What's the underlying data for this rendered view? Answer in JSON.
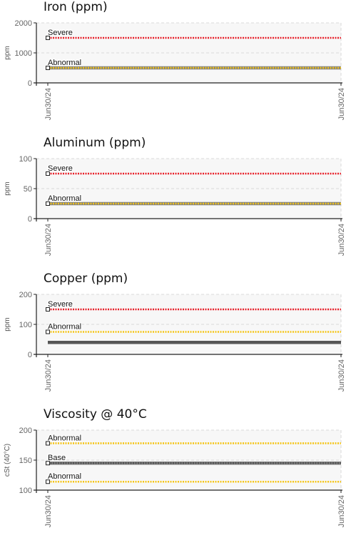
{
  "chart_data": [
    {
      "type": "line",
      "title": "Iron (ppm)",
      "ylabel": "ppm",
      "ylim": [
        0,
        2000
      ],
      "yticks": [
        "0",
        "1000",
        "2000"
      ],
      "x": [
        "Jun30/24",
        "Jun30/24"
      ],
      "grid": true,
      "thresholds": [
        {
          "label": "Severe",
          "value": 1500,
          "color": "#e8202a"
        },
        {
          "label": "Abnormal",
          "value": 500,
          "color": "#f5c518"
        }
      ],
      "series": [
        {
          "values": [
            500,
            500
          ],
          "color": "#808080"
        }
      ]
    },
    {
      "type": "line",
      "title": "Aluminum (ppm)",
      "ylabel": "ppm",
      "ylim": [
        0,
        100
      ],
      "yticks": [
        "0",
        "50",
        "100"
      ],
      "x": [
        "Jun30/24",
        "Jun30/24"
      ],
      "grid": true,
      "thresholds": [
        {
          "label": "Severe",
          "value": 75,
          "color": "#e8202a"
        },
        {
          "label": "Abnormal",
          "value": 25,
          "color": "#f5c518"
        }
      ],
      "series": [
        {
          "values": [
            25,
            25
          ],
          "color": "#808080"
        }
      ]
    },
    {
      "type": "line",
      "title": "Copper (ppm)",
      "ylabel": "ppm",
      "ylim": [
        0,
        200
      ],
      "yticks": [
        "0",
        "100",
        "200"
      ],
      "x": [
        "Jun30/24",
        "Jun30/24"
      ],
      "grid": true,
      "thresholds": [
        {
          "label": "Severe",
          "value": 150,
          "color": "#e8202a"
        },
        {
          "label": "Abnormal",
          "value": 75,
          "color": "#f5c518"
        }
      ],
      "series": [
        {
          "values": [
            40,
            40
          ],
          "color": "#555555"
        }
      ]
    },
    {
      "type": "line",
      "title": "Viscosity @ 40°C",
      "ylabel": "cSt (40°C)",
      "ylim": [
        100,
        200
      ],
      "yticks": [
        "100",
        "150",
        "200"
      ],
      "x": [
        "Jun30/24",
        "Jun30/24"
      ],
      "grid": true,
      "thresholds": [
        {
          "label": "Abnormal",
          "value": 178,
          "color": "#f5c518"
        },
        {
          "label": "Base",
          "value": 145,
          "color": "#555555"
        },
        {
          "label": "Abnormal",
          "value": 114,
          "color": "#f5c518"
        }
      ],
      "series": [
        {
          "values": [
            145,
            145
          ],
          "color": "#808080"
        }
      ]
    }
  ]
}
